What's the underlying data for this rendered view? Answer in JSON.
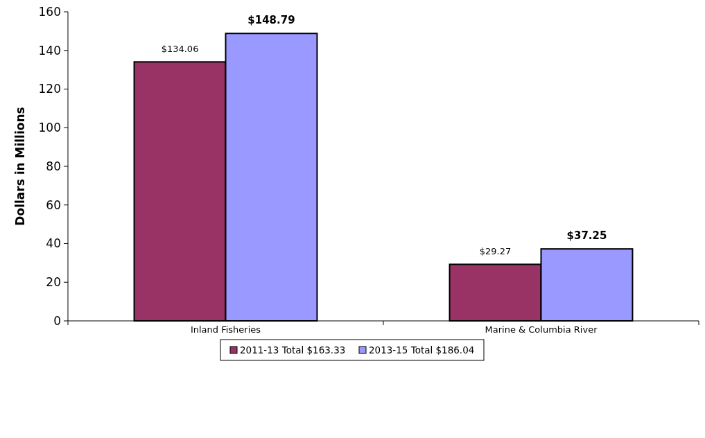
{
  "chart_data": {
    "type": "bar",
    "ylabel": "Dollars in Millions",
    "categories": [
      "Inland Fisheries",
      "Marine & Columbia River"
    ],
    "series": [
      {
        "name": "2011-13 Total $163.33",
        "color": "#993366",
        "values": [
          134.06,
          29.27
        ],
        "value_labels": [
          "$134.06",
          "$29.27"
        ]
      },
      {
        "name": "2013-15 Total $186.04",
        "color": "#9999ff",
        "values": [
          148.79,
          37.25
        ],
        "value_labels": [
          "$148.79",
          "$37.25"
        ]
      }
    ],
    "ylim": [
      0,
      160
    ],
    "yticks": [
      0,
      20,
      40,
      60,
      80,
      100,
      120,
      140,
      160
    ],
    "grid": false,
    "legend": "bottom"
  }
}
